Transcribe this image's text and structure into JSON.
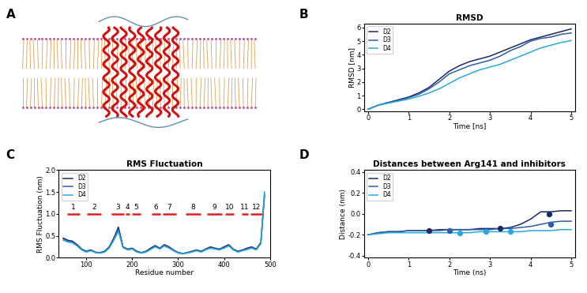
{
  "image_panel": {
    "panel": "A"
  },
  "chart_data": [
    {
      "panel": "B",
      "type": "line",
      "title": "RMSD",
      "xlabel": "Time [ns]",
      "ylabel": "RMSD [nm]",
      "x": [
        0,
        0.25,
        0.5,
        0.75,
        1,
        1.25,
        1.5,
        1.75,
        2,
        2.25,
        2.5,
        2.75,
        3,
        3.25,
        3.5,
        3.75,
        4,
        4.25,
        4.5,
        4.75,
        5
      ],
      "series": [
        {
          "name": "D2",
          "color": "#1b2a66",
          "values": [
            0,
            0.3,
            0.5,
            0.7,
            0.9,
            1.2,
            1.6,
            2.2,
            2.8,
            3.2,
            3.5,
            3.7,
            3.9,
            4.2,
            4.5,
            4.8,
            5.1,
            5.3,
            5.5,
            5.7,
            5.9
          ]
        },
        {
          "name": "D3",
          "color": "#2d5ea8",
          "values": [
            0,
            0.3,
            0.5,
            0.65,
            0.85,
            1.1,
            1.5,
            2.0,
            2.6,
            2.9,
            3.2,
            3.4,
            3.6,
            3.9,
            4.3,
            4.6,
            5.0,
            5.2,
            5.3,
            5.5,
            5.6
          ]
        },
        {
          "name": "D4",
          "color": "#29a8e0",
          "values": [
            0,
            0.3,
            0.45,
            0.6,
            0.75,
            0.95,
            1.2,
            1.5,
            1.9,
            2.3,
            2.6,
            2.9,
            3.1,
            3.3,
            3.6,
            3.9,
            4.2,
            4.5,
            4.7,
            4.9,
            5.05
          ]
        }
      ],
      "xlim": [
        -0.1,
        5.1
      ],
      "xticks": [
        0,
        1,
        2,
        3,
        4,
        5
      ],
      "ylim": [
        -0.15,
        6.3
      ],
      "yticks": [
        0,
        1,
        2,
        3,
        4,
        5,
        6
      ],
      "legend": "upper left"
    },
    {
      "panel": "C",
      "type": "line",
      "title": "RMS Fluctuation",
      "xlabel": "Residue number",
      "ylabel": "RMS Fluctuation (nm)",
      "x": [
        50,
        60,
        70,
        80,
        90,
        100,
        110,
        120,
        130,
        140,
        150,
        160,
        170,
        180,
        190,
        200,
        210,
        220,
        230,
        240,
        250,
        260,
        270,
        280,
        290,
        300,
        310,
        320,
        330,
        340,
        350,
        360,
        370,
        380,
        390,
        400,
        410,
        420,
        430,
        440,
        450,
        460,
        470,
        480,
        488
      ],
      "series": [
        {
          "name": "D2",
          "color": "#1b2a66",
          "values": [
            0.45,
            0.4,
            0.38,
            0.3,
            0.2,
            0.15,
            0.18,
            0.13,
            0.12,
            0.15,
            0.25,
            0.45,
            0.7,
            0.25,
            0.2,
            0.22,
            0.15,
            0.12,
            0.15,
            0.22,
            0.28,
            0.22,
            0.3,
            0.25,
            0.18,
            0.12,
            0.1,
            0.12,
            0.15,
            0.18,
            0.15,
            0.2,
            0.25,
            0.22,
            0.2,
            0.25,
            0.3,
            0.2,
            0.15,
            0.18,
            0.22,
            0.25,
            0.2,
            0.35,
            1.45
          ]
        },
        {
          "name": "D3",
          "color": "#2d5ea8",
          "values": [
            0.43,
            0.38,
            0.36,
            0.28,
            0.19,
            0.14,
            0.17,
            0.12,
            0.11,
            0.14,
            0.24,
            0.42,
            0.65,
            0.24,
            0.19,
            0.21,
            0.14,
            0.11,
            0.14,
            0.2,
            0.26,
            0.21,
            0.28,
            0.23,
            0.17,
            0.11,
            0.1,
            0.11,
            0.14,
            0.17,
            0.14,
            0.19,
            0.23,
            0.21,
            0.19,
            0.23,
            0.28,
            0.19,
            0.14,
            0.17,
            0.2,
            0.23,
            0.19,
            0.33,
            1.4
          ]
        },
        {
          "name": "D4",
          "color": "#29a8e0",
          "values": [
            0.4,
            0.36,
            0.34,
            0.27,
            0.18,
            0.13,
            0.16,
            0.12,
            0.11,
            0.13,
            0.22,
            0.4,
            0.6,
            0.23,
            0.18,
            0.2,
            0.13,
            0.11,
            0.13,
            0.19,
            0.25,
            0.2,
            0.27,
            0.22,
            0.16,
            0.11,
            0.09,
            0.11,
            0.13,
            0.16,
            0.13,
            0.18,
            0.22,
            0.2,
            0.18,
            0.22,
            0.27,
            0.18,
            0.13,
            0.16,
            0.19,
            0.22,
            0.18,
            0.32,
            1.5
          ]
        }
      ],
      "xlim": [
        40,
        500
      ],
      "xticks": [
        100,
        200,
        300,
        400,
        500
      ],
      "ylim": [
        0,
        2.0
      ],
      "yticks": [
        {
          "value": 0,
          "label": "0.0"
        },
        {
          "value": 0.5,
          "label": "0.5"
        },
        {
          "value": 1.0,
          "label": "1.0"
        },
        {
          "value": 1.5,
          "label": "1.5"
        },
        {
          "value": 2.0,
          "label": "2.0"
        }
      ],
      "legend": "upper left",
      "segment_y": 1.0,
      "segment_color": "#e02020",
      "segments": [
        {
          "text": "1",
          "start": 59,
          "end": 86
        },
        {
          "text": "2",
          "start": 102,
          "end": 132
        },
        {
          "text": "3",
          "start": 154,
          "end": 183
        },
        {
          "text": "4",
          "start": 186,
          "end": 194
        },
        {
          "text": "5",
          "start": 199,
          "end": 218
        },
        {
          "text": "6",
          "start": 242,
          "end": 261
        },
        {
          "text": "7",
          "start": 266,
          "end": 296
        },
        {
          "text": "8",
          "start": 317,
          "end": 349
        },
        {
          "text": "9",
          "start": 362,
          "end": 395
        },
        {
          "text": "10",
          "start": 403,
          "end": 422
        },
        {
          "text": "11",
          "start": 439,
          "end": 452
        },
        {
          "text": "12",
          "start": 457,
          "end": 484
        }
      ]
    },
    {
      "panel": "D",
      "type": "line",
      "title": "Distances between Arg141 and inhibitors",
      "xlabel": "Time (ns)",
      "ylabel": "Distance (nm)",
      "x": [
        0,
        0.25,
        0.5,
        0.75,
        1,
        1.25,
        1.5,
        1.75,
        2,
        2.25,
        2.5,
        2.75,
        3,
        3.25,
        3.5,
        3.75,
        4,
        4.25,
        4.5,
        4.75,
        5
      ],
      "series": [
        {
          "name": "D2",
          "color": "#1b2a66",
          "values": [
            -0.2,
            -0.18,
            -0.17,
            -0.17,
            -0.16,
            -0.16,
            -0.16,
            -0.15,
            -0.15,
            -0.15,
            -0.15,
            -0.14,
            -0.14,
            -0.14,
            -0.13,
            -0.1,
            -0.05,
            0.02,
            0.02,
            0.03,
            0.03
          ],
          "highlight_x": [
            1.5,
            3.25,
            4.45
          ],
          "highlight_y": [
            -0.16,
            -0.14,
            0.0
          ]
        },
        {
          "name": "D3",
          "color": "#2d5ea8",
          "values": [
            -0.2,
            -0.18,
            -0.17,
            -0.17,
            -0.16,
            -0.16,
            -0.16,
            -0.16,
            -0.15,
            -0.15,
            -0.15,
            -0.15,
            -0.15,
            -0.14,
            -0.14,
            -0.13,
            -0.12,
            -0.1,
            -0.08,
            -0.07,
            -0.07
          ],
          "highlight_x": [
            2.0,
            4.5
          ],
          "highlight_y": [
            -0.16,
            -0.1
          ]
        },
        {
          "name": "D4",
          "color": "#29a8e0",
          "values": [
            -0.2,
            -0.19,
            -0.18,
            -0.18,
            -0.18,
            -0.18,
            -0.18,
            -0.18,
            -0.18,
            -0.18,
            -0.18,
            -0.17,
            -0.17,
            -0.17,
            -0.17,
            -0.17,
            -0.16,
            -0.16,
            -0.16,
            -0.15,
            -0.15
          ],
          "highlight_x": [
            2.25,
            2.9,
            3.5
          ],
          "highlight_y": [
            -0.18,
            -0.17,
            -0.17
          ]
        }
      ],
      "xlim": [
        -0.1,
        5.1
      ],
      "xticks": [
        0,
        1,
        2,
        3,
        4,
        5
      ],
      "ylim": [
        -0.42,
        0.42
      ],
      "yticks": [
        {
          "value": -0.4,
          "label": "-0.4"
        },
        {
          "value": -0.2,
          "label": "-0.2"
        },
        {
          "value": 0.0,
          "label": "0.0"
        },
        {
          "value": 0.2,
          "label": "0.2"
        },
        {
          "value": 0.4,
          "label": "0.4"
        }
      ],
      "legend": "upper left"
    }
  ]
}
